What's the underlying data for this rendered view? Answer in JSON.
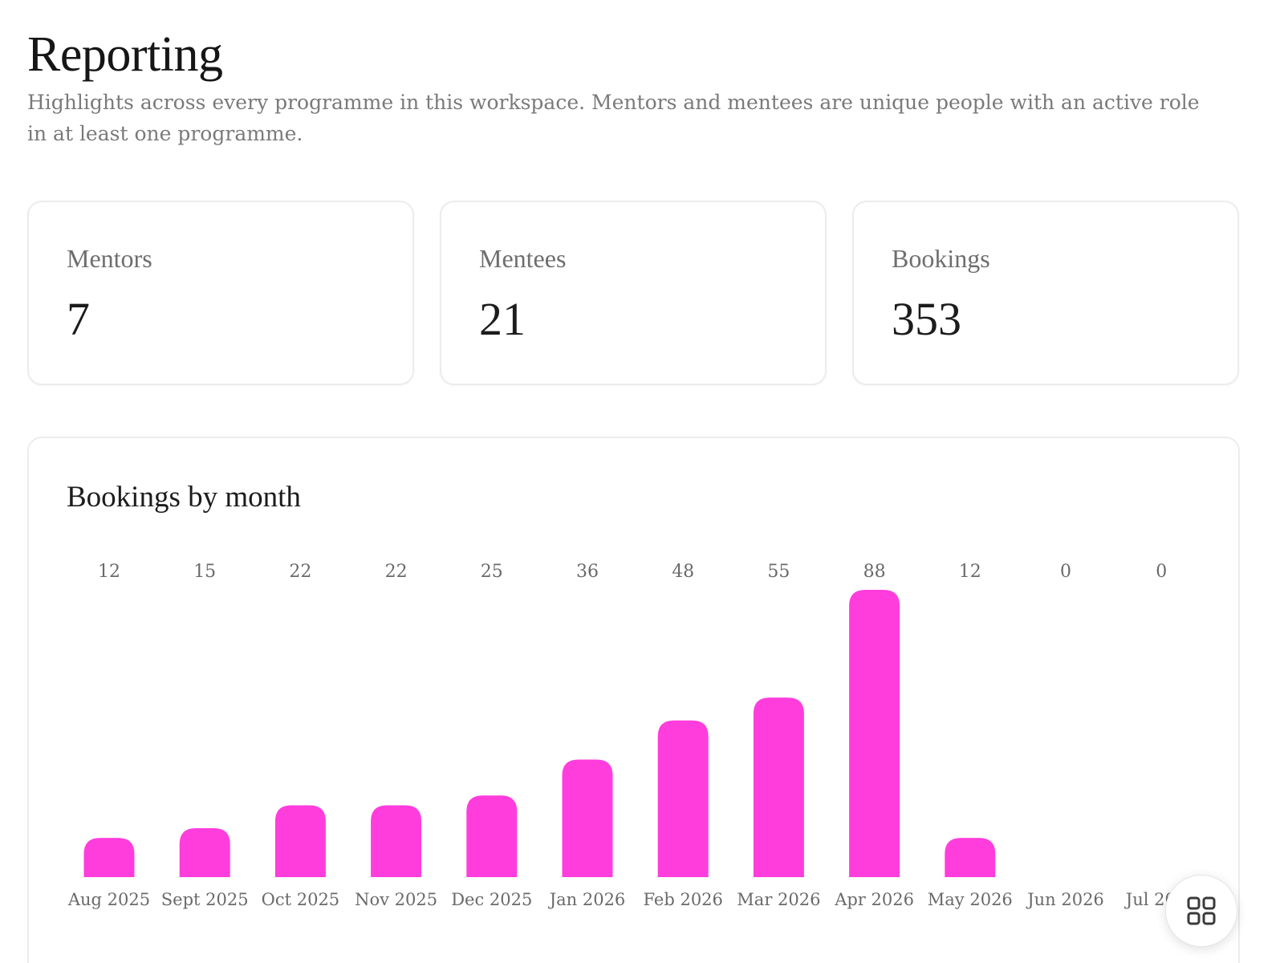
{
  "page": {
    "title": "Reporting",
    "subtitle": "Highlights across every programme in this workspace. Mentors and mentees are unique people with an active role in at least one programme."
  },
  "stats": [
    {
      "label": "Mentors",
      "value": "7"
    },
    {
      "label": "Mentees",
      "value": "21"
    },
    {
      "label": "Bookings",
      "value": "353"
    }
  ],
  "chart": {
    "title": "Bookings by month"
  },
  "chart_data": {
    "type": "bar",
    "title": "Bookings by month",
    "categories": [
      "Aug 2025",
      "Sept 2025",
      "Oct 2025",
      "Nov 2025",
      "Dec 2025",
      "Jan 2026",
      "Feb 2026",
      "Mar 2026",
      "Apr 2026",
      "May 2026",
      "Jun 2026",
      "Jul 2026"
    ],
    "values": [
      12,
      15,
      22,
      22,
      25,
      36,
      48,
      55,
      88,
      12,
      0,
      0
    ],
    "bar_color": "#ff3ddc",
    "data_labels": true,
    "grid": false
  },
  "fab": {
    "icon": "grid-icon"
  },
  "colors": {
    "accent": "#ff3ddc",
    "title": "#161616",
    "muted": "#7a7a7a",
    "border": "#ececec"
  }
}
